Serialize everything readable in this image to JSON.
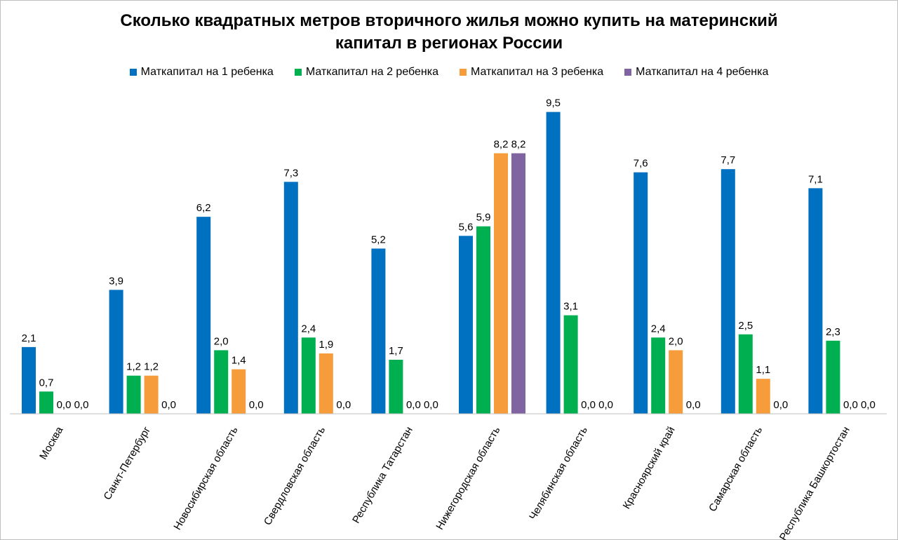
{
  "chart_data": {
    "type": "bar",
    "title": "Сколько квадратных метров вторичного жилья можно купить на материнский капитал в регионах России",
    "categories": [
      "Москва",
      "Санкт-Петербург",
      "Новосибирская область",
      "Свердловская область",
      "Республика Татарстан",
      "Нижегородская область",
      "Челябинская область",
      "Красноярский край",
      "Самарская область",
      "Республика Башкортостан"
    ],
    "series": [
      {
        "name": "Маткапитал на 1 ребенка",
        "color": "#0070C0",
        "values": [
          2.1,
          3.9,
          6.2,
          7.3,
          5.2,
          5.6,
          9.5,
          7.6,
          7.7,
          7.1
        ],
        "labels": [
          "2,1",
          "3,9",
          "6,2",
          "7,3",
          "5,2",
          "5,6",
          "9,5",
          "7,6",
          "7,7",
          "7,1"
        ]
      },
      {
        "name": "Маткапитал на 2 ребенка",
        "color": "#00B050",
        "values": [
          0.7,
          1.2,
          2.0,
          2.4,
          1.7,
          5.9,
          3.1,
          2.4,
          2.5,
          2.3
        ],
        "labels": [
          "0,7",
          "1,2",
          "2,0",
          "2,4",
          "1,7",
          "5,9",
          "3,1",
          "2,4",
          "2,5",
          "2,3"
        ]
      },
      {
        "name": "Маткапитал на 3 ребенка",
        "color": "#F79C3A",
        "values": [
          0.0,
          1.2,
          1.4,
          1.9,
          0.0,
          8.2,
          0.0,
          2.0,
          1.1,
          0.0
        ],
        "labels": [
          "0,0",
          "1,2",
          "1,4",
          "1,9",
          "0,0",
          "8,2",
          "0,0",
          "2,0",
          "1,1",
          "0,0"
        ]
      },
      {
        "name": "Маткапитал на 4 ребенка",
        "color": "#8064A2",
        "values": [
          0.0,
          0.0,
          0.0,
          0.0,
          0.0,
          8.2,
          0.0,
          0.0,
          0.0,
          0.0
        ],
        "labels": [
          "0,0",
          "0,0",
          "0,0",
          "0,0",
          "0,0",
          "8,2",
          "0,0",
          "0,0",
          "0,0",
          "0,0"
        ]
      }
    ],
    "ylim": [
      0,
      10
    ],
    "grid": false,
    "legend_position": "top"
  }
}
